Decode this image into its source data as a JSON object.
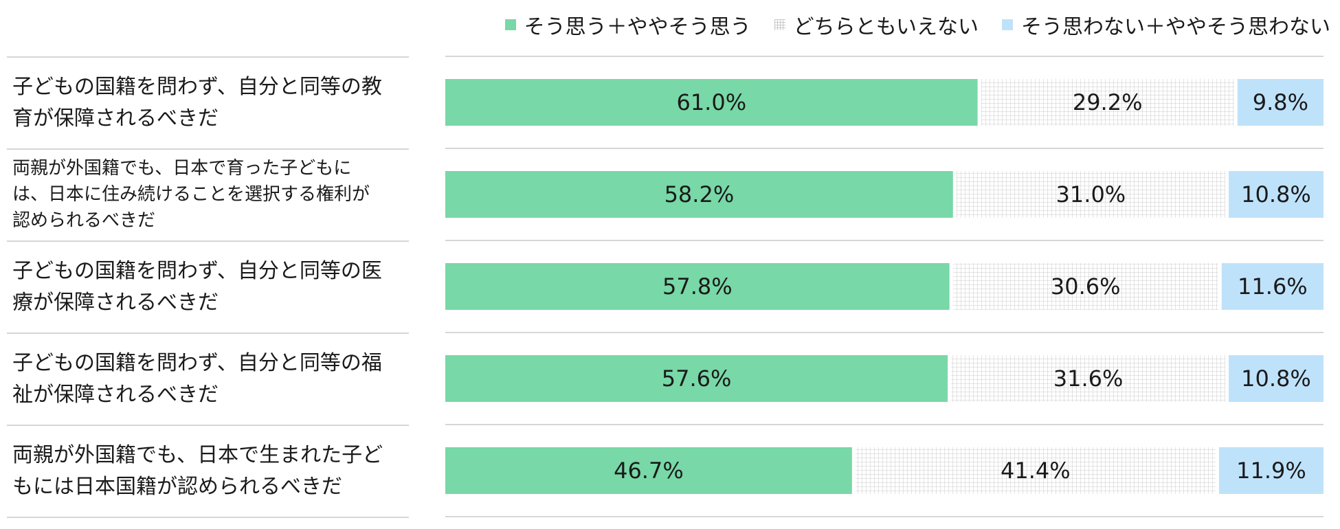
{
  "chart_data": {
    "type": "bar",
    "orientation": "horizontal",
    "stacked": true,
    "normalized_100": true,
    "title": "",
    "xlabel": "",
    "ylabel": "",
    "xlim": [
      0,
      100
    ],
    "legend_position": "top-right",
    "grid": false,
    "categories": [
      "子どもの国籍を問わず、自分と同等の教\n育が保障されるべきだ",
      "両親が外国籍でも、日本で育った子どもに\nは、日本に住み続けることを選択する権利が\n認められるべきだ",
      "子どもの国籍を問わず、自分と同等の医\n療が保障されるべきだ",
      "子どもの国籍を問わず、自分と同等の福\n祉が保障されるべきだ",
      "両親が外国籍でも、日本で生まれた子ど\nもには日本国籍が認められるべきだ"
    ],
    "series": [
      {
        "name": "そう思う＋ややそう思う",
        "color": "#78d8a7",
        "pattern": "solid",
        "values": [
          61.0,
          58.2,
          57.8,
          57.6,
          46.7
        ],
        "labels": [
          "61.0%",
          "58.2%",
          "57.8%",
          "57.6%",
          "46.7%"
        ]
      },
      {
        "name": "どちらともいえない",
        "color": "#c8c8c8",
        "pattern": "grid",
        "values": [
          29.2,
          31.0,
          30.6,
          31.6,
          41.4
        ],
        "labels": [
          "29.2%",
          "31.0%",
          "30.6%",
          "31.6%",
          "41.4%"
        ]
      },
      {
        "name": "そう思わない＋ややそう思わない",
        "color": "#bfe2fb",
        "pattern": "solid",
        "values": [
          9.8,
          10.8,
          11.6,
          10.8,
          11.9
        ],
        "labels": [
          "9.8%",
          "10.8%",
          "11.6%",
          "10.8%",
          "11.9%"
        ]
      }
    ]
  }
}
